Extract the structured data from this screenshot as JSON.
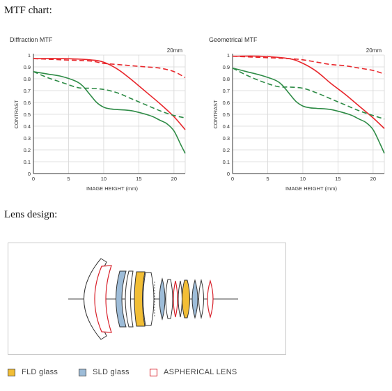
{
  "headings": {
    "mtf": "MTF chart:",
    "lens": "Lens design:"
  },
  "charts": [
    {
      "title": "Diffraction MTF",
      "focal": "20mm"
    },
    {
      "title": "Geometrical MTF",
      "focal": "20mm"
    }
  ],
  "chart_data": [
    {
      "type": "line",
      "title": "Diffraction MTF",
      "annotation": "20mm",
      "xlabel": "IMAGE HEIGHT (mm)",
      "ylabel": "CONTRAST",
      "xlim": [
        0,
        21.6
      ],
      "ylim": [
        0,
        1
      ],
      "xticks": [
        0,
        5,
        10,
        15,
        20
      ],
      "yticks": [
        0,
        0.1,
        0.2,
        0.3,
        0.4,
        0.5,
        0.6,
        0.7,
        0.8,
        0.9,
        1
      ],
      "grid": true,
      "series": [
        {
          "color": "#e8262b",
          "dash": "solid",
          "x": [
            0,
            4,
            8,
            10,
            12,
            14,
            16,
            18,
            20,
            21.6
          ],
          "y": [
            0.97,
            0.97,
            0.96,
            0.94,
            0.88,
            0.79,
            0.69,
            0.59,
            0.48,
            0.37
          ]
        },
        {
          "color": "#e8262b",
          "dash": "dashed",
          "x": [
            0,
            4,
            8,
            10,
            12,
            14,
            16,
            18,
            20,
            21.6
          ],
          "y": [
            0.97,
            0.96,
            0.95,
            0.93,
            0.92,
            0.91,
            0.9,
            0.89,
            0.86,
            0.81
          ]
        },
        {
          "color": "#2e8b46",
          "dash": "solid",
          "x": [
            0,
            2,
            4,
            6,
            7,
            8,
            9,
            10,
            11,
            12,
            14,
            16,
            17,
            18,
            19,
            20,
            21,
            21.6
          ],
          "y": [
            0.86,
            0.84,
            0.82,
            0.78,
            0.74,
            0.67,
            0.6,
            0.56,
            0.545,
            0.54,
            0.53,
            0.5,
            0.48,
            0.45,
            0.42,
            0.36,
            0.24,
            0.17
          ]
        },
        {
          "color": "#2e8b46",
          "dash": "dashed",
          "x": [
            0,
            2,
            4,
            6,
            7,
            8,
            10,
            12,
            14,
            16,
            18,
            20,
            21.6
          ],
          "y": [
            0.86,
            0.81,
            0.77,
            0.73,
            0.72,
            0.72,
            0.71,
            0.68,
            0.63,
            0.58,
            0.53,
            0.49,
            0.47
          ]
        }
      ]
    },
    {
      "type": "line",
      "title": "Geometrical MTF",
      "annotation": "20mm",
      "xlabel": "IMAGE HEIGHT (mm)",
      "ylabel": "CONTRAST",
      "xlim": [
        0,
        21.6
      ],
      "ylim": [
        0,
        1
      ],
      "xticks": [
        0,
        5,
        10,
        15,
        20
      ],
      "yticks": [
        0,
        0.1,
        0.2,
        0.3,
        0.4,
        0.5,
        0.6,
        0.7,
        0.8,
        0.9,
        1
      ],
      "grid": true,
      "series": [
        {
          "color": "#e8262b",
          "dash": "solid",
          "x": [
            0,
            4,
            8,
            10,
            12,
            14,
            16,
            18,
            20,
            21.6
          ],
          "y": [
            0.99,
            0.99,
            0.97,
            0.93,
            0.86,
            0.76,
            0.67,
            0.57,
            0.47,
            0.38
          ]
        },
        {
          "color": "#e8262b",
          "dash": "dashed",
          "x": [
            0,
            4,
            8,
            10,
            12,
            14,
            16,
            18,
            20,
            21.6
          ],
          "y": [
            0.99,
            0.98,
            0.97,
            0.96,
            0.94,
            0.92,
            0.91,
            0.89,
            0.87,
            0.84
          ]
        },
        {
          "color": "#2e8b46",
          "dash": "solid",
          "x": [
            0,
            2,
            4,
            6,
            7,
            8,
            9,
            10,
            11,
            12,
            14,
            16,
            17,
            18,
            19,
            20,
            21,
            21.6
          ],
          "y": [
            0.89,
            0.86,
            0.83,
            0.79,
            0.75,
            0.68,
            0.61,
            0.57,
            0.555,
            0.55,
            0.54,
            0.51,
            0.49,
            0.46,
            0.43,
            0.37,
            0.25,
            0.17
          ]
        },
        {
          "color": "#2e8b46",
          "dash": "dashed",
          "x": [
            0,
            2,
            4,
            6,
            7,
            8,
            10,
            12,
            14,
            16,
            18,
            20,
            21.6
          ],
          "y": [
            0.89,
            0.83,
            0.78,
            0.74,
            0.73,
            0.73,
            0.72,
            0.68,
            0.63,
            0.58,
            0.53,
            0.49,
            0.46
          ]
        }
      ]
    }
  ],
  "legend": [
    {
      "label": "FLD glass",
      "color": "#f2be35",
      "type": "fill"
    },
    {
      "label": "SLD glass",
      "color": "#9dbcd8",
      "type": "fill"
    },
    {
      "label": "ASPHERICAL LENS",
      "color": "#d8202a",
      "type": "outline"
    }
  ]
}
